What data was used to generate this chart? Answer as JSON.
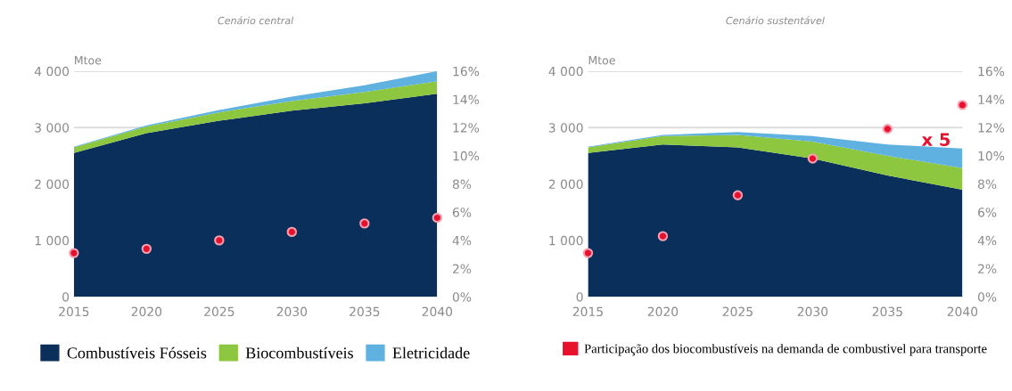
{
  "chart_data": [
    {
      "type": "area",
      "title": "Cenário central",
      "ylabel": "Mtoe",
      "x": [
        2015,
        2020,
        2025,
        2030,
        2035,
        2040
      ],
      "stacked": true,
      "xlim": [
        2015,
        2040
      ],
      "xticks": [
        2015,
        2020,
        2025,
        2030,
        2035,
        2040
      ],
      "ylim": [
        0,
        4000
      ],
      "yticks": [
        0,
        {
          "value": 1000,
          "label": "1 000"
        },
        {
          "value": 2000,
          "label": "2 000"
        },
        {
          "value": 3000,
          "label": "3 000"
        },
        {
          "value": 4000,
          "label": "4 000"
        }
      ],
      "y2lim": [
        0,
        16
      ],
      "y2ticks": [
        {
          "value": 0,
          "label": "0%"
        },
        {
          "value": 2,
          "label": "2%"
        },
        {
          "value": 4,
          "label": "4%"
        },
        {
          "value": 6,
          "label": "6%"
        },
        {
          "value": 8,
          "label": "8%"
        },
        {
          "value": 10,
          "label": "10%"
        },
        {
          "value": 12,
          "label": "12%"
        },
        {
          "value": 14,
          "label": "14%"
        },
        {
          "value": 16,
          "label": "16%"
        }
      ],
      "grid": "y",
      "legend": "bottom",
      "series": [
        {
          "name": "Combustíveis Fósseis",
          "color": "#0b2f5b",
          "values": [
            2550,
            2900,
            3120,
            3300,
            3430,
            3600
          ]
        },
        {
          "name": "Biocombustíveis",
          "color": "#8dc63f",
          "values": [
            100,
            120,
            150,
            170,
            200,
            220
          ]
        },
        {
          "name": "Eletricidade",
          "color": "#5fb1e0",
          "values": [
            10,
            20,
            40,
            80,
            120,
            180
          ]
        },
        {
          "type": "scatter",
          "axis": "y2",
          "color": "#e8112d",
          "marker": "circle",
          "values": [
            3.1,
            3.4,
            4.0,
            4.6,
            5.2,
            5.6
          ]
        }
      ]
    },
    {
      "type": "area",
      "title": "Cenário sustentável",
      "ylabel": "Mtoe",
      "x": [
        2015,
        2020,
        2025,
        2030,
        2035,
        2040
      ],
      "stacked": true,
      "xlim": [
        2015,
        2040
      ],
      "xticks": [
        2015,
        2020,
        2025,
        2030,
        2035,
        2040
      ],
      "ylim": [
        0,
        4000
      ],
      "yticks": [
        0,
        {
          "value": 1000,
          "label": "1 000"
        },
        {
          "value": 2000,
          "label": "2 000"
        },
        {
          "value": 3000,
          "label": "3 000"
        },
        {
          "value": 4000,
          "label": "4 000"
        }
      ],
      "y2lim": [
        0,
        16
      ],
      "y2ticks": [
        {
          "value": 0,
          "label": "0%"
        },
        {
          "value": 2,
          "label": "2%"
        },
        {
          "value": 4,
          "label": "4%"
        },
        {
          "value": 6,
          "label": "6%"
        },
        {
          "value": 8,
          "label": "8%"
        },
        {
          "value": 10,
          "label": "10%"
        },
        {
          "value": 12,
          "label": "12%"
        },
        {
          "value": 14,
          "label": "14%"
        },
        {
          "value": 16,
          "label": "16%"
        }
      ],
      "grid": "y",
      "legend": "bottom",
      "annotations": [
        "x 5"
      ],
      "series": [
        {
          "color": "#0b2f5b",
          "values": [
            2550,
            2700,
            2650,
            2450,
            2150,
            1900
          ]
        },
        {
          "color": "#8dc63f",
          "values": [
            100,
            150,
            220,
            300,
            350,
            380
          ]
        },
        {
          "color": "#5fb1e0",
          "values": [
            10,
            20,
            50,
            100,
            200,
            350
          ]
        },
        {
          "type": "scatter",
          "axis": "y2",
          "name": "Participação dos biocombustíveis na demanda de combustivel para transporte",
          "color": "#e8112d",
          "marker": "circle",
          "values": [
            3.1,
            4.3,
            7.2,
            9.8,
            11.9,
            13.6
          ]
        }
      ]
    }
  ]
}
